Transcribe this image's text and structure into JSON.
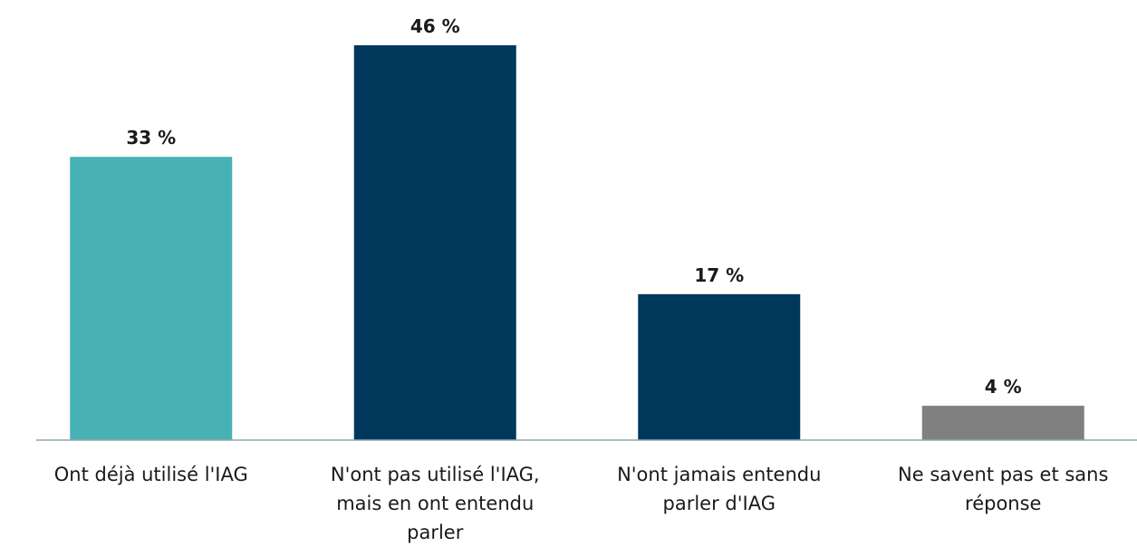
{
  "chart_data": {
    "type": "bar",
    "categories": [
      "Ont déjà utilisé l'IAG",
      "N'ont pas utilisé l'IAG, mais en ont entendu parler",
      "N'ont jamais entendu parler d'IAG",
      "Ne savent pas et sans réponse"
    ],
    "values": [
      33,
      46,
      17,
      4
    ],
    "value_labels": [
      "33 %",
      "46 %",
      "17 %",
      "4 %"
    ],
    "colors": [
      "#48b1b3",
      "#00385c",
      "#00385c",
      "#808080"
    ]
  }
}
